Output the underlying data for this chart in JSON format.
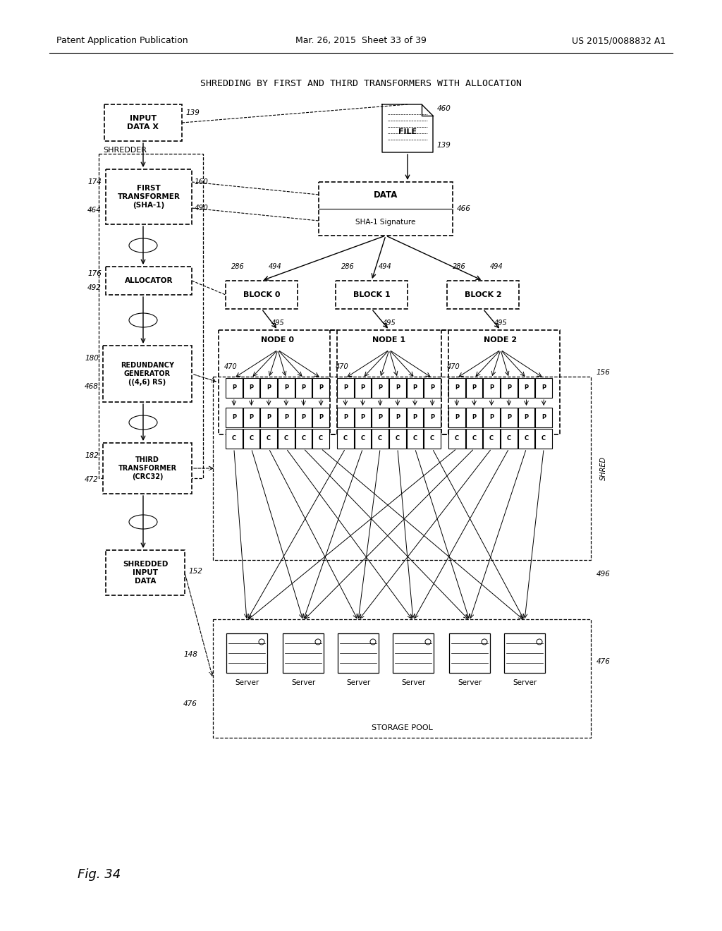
{
  "bg_color": "#ffffff",
  "header_left": "Patent Application Publication",
  "header_mid": "Mar. 26, 2015  Sheet 33 of 39",
  "header_right": "US 2015/0088832 A1",
  "title": "SHREDDING BY FIRST AND THIRD TRANSFORMERS WITH ALLOCATION",
  "fig_label": "Fig. 34"
}
